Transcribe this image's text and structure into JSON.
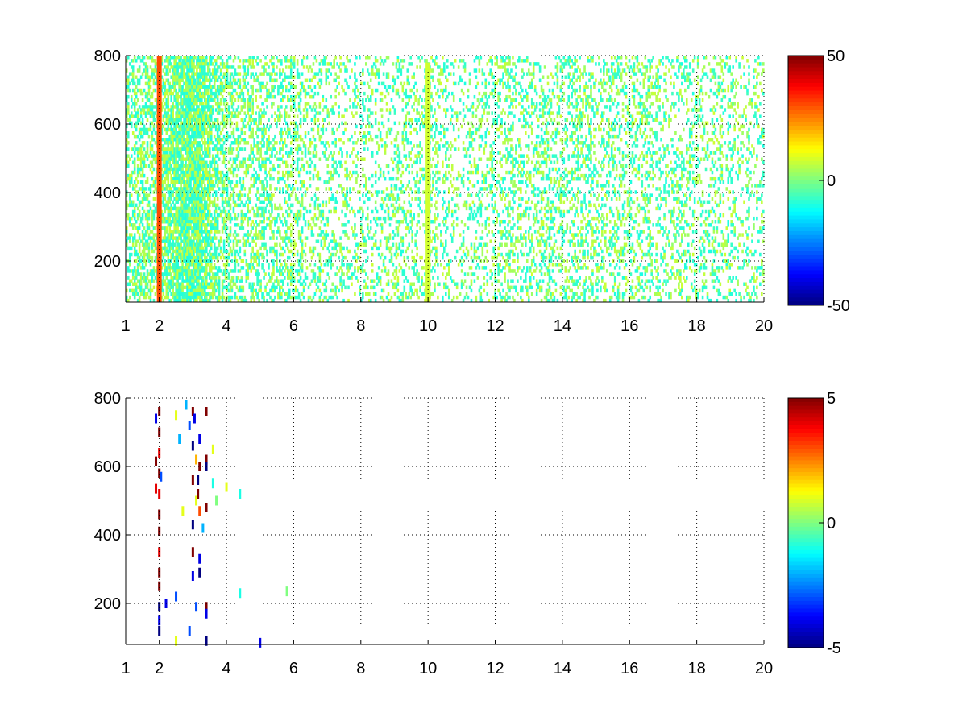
{
  "chart_data": [
    {
      "type": "heatmap",
      "title": "",
      "xlabel": "",
      "ylabel": "",
      "xlim": [
        1,
        20
      ],
      "ylim": [
        80,
        800
      ],
      "x_ticks": [
        1,
        2,
        4,
        6,
        8,
        10,
        12,
        14,
        16,
        18,
        20
      ],
      "x_tick_labels": [
        "1",
        "2",
        "4",
        "6",
        "8",
        "10",
        "12",
        "14",
        "16",
        "18",
        "20"
      ],
      "y_ticks": [
        200,
        400,
        600,
        800
      ],
      "y_tick_labels": [
        "200",
        "400",
        "600",
        "800"
      ],
      "grid": true,
      "colormap": "jet",
      "colorbar": {
        "min": -50,
        "max": 50,
        "ticks": [
          -50,
          0,
          50
        ],
        "tick_labels": [
          "-50",
          "0",
          "50"
        ]
      },
      "density_profile": [
        {
          "x": 1.0,
          "density": 0.45
        },
        {
          "x": 2.0,
          "density": 0.55
        },
        {
          "x": 2.6,
          "density": 0.9
        },
        {
          "x": 3.2,
          "density": 0.95
        },
        {
          "x": 3.6,
          "density": 0.6
        },
        {
          "x": 4.0,
          "density": 0.45
        },
        {
          "x": 5.0,
          "density": 0.38
        },
        {
          "x": 6.0,
          "density": 0.32
        },
        {
          "x": 7.0,
          "density": 0.26
        },
        {
          "x": 8.0,
          "density": 0.2
        },
        {
          "x": 9.0,
          "density": 0.28
        },
        {
          "x": 10.0,
          "density": 0.25
        },
        {
          "x": 11.0,
          "density": 0.2
        },
        {
          "x": 12.0,
          "density": 0.3
        },
        {
          "x": 14.0,
          "density": 0.3
        },
        {
          "x": 16.0,
          "density": 0.3
        },
        {
          "x": 18.0,
          "density": 0.24
        },
        {
          "x": 20.0,
          "density": 0.2
        }
      ],
      "value_range_typical": [
        -10,
        8
      ],
      "emphasized_columns": [
        {
          "x": 10.0,
          "value": 8,
          "ymin": 80,
          "ymax": 780
        },
        {
          "x": 2.0,
          "value": 30,
          "ymin": 80,
          "ymax": 800
        }
      ],
      "series": []
    },
    {
      "type": "heatmap",
      "title": "",
      "xlabel": "",
      "ylabel": "",
      "xlim": [
        1,
        20
      ],
      "ylim": [
        80,
        800
      ],
      "x_ticks": [
        1,
        2,
        4,
        6,
        8,
        10,
        12,
        14,
        16,
        18,
        20
      ],
      "x_tick_labels": [
        "1",
        "2",
        "4",
        "6",
        "8",
        "10",
        "12",
        "14",
        "16",
        "18",
        "20"
      ],
      "y_ticks": [
        200,
        400,
        600,
        800
      ],
      "y_tick_labels": [
        "200",
        "400",
        "600",
        "800"
      ],
      "grid": true,
      "colormap": "jet",
      "colorbar": {
        "min": -5,
        "max": 5,
        "ticks": [
          -5,
          0,
          5
        ],
        "tick_labels": [
          "-5",
          "0",
          "5"
        ]
      },
      "sparse_points": [
        {
          "x": 2.0,
          "y": 760,
          "v": 5
        },
        {
          "x": 2.0,
          "y": 700,
          "v": 5
        },
        {
          "x": 2.0,
          "y": 640,
          "v": 4
        },
        {
          "x": 2.0,
          "y": 580,
          "v": 5
        },
        {
          "x": 2.0,
          "y": 520,
          "v": 4
        },
        {
          "x": 2.0,
          "y": 460,
          "v": 5
        },
        {
          "x": 2.0,
          "y": 410,
          "v": 5
        },
        {
          "x": 2.0,
          "y": 350,
          "v": 4
        },
        {
          "x": 2.0,
          "y": 290,
          "v": 5
        },
        {
          "x": 2.0,
          "y": 250,
          "v": 5
        },
        {
          "x": 2.0,
          "y": 190,
          "v": -5
        },
        {
          "x": 2.0,
          "y": 150,
          "v": -4
        },
        {
          "x": 2.0,
          "y": 120,
          "v": -5
        },
        {
          "x": 1.9,
          "y": 740,
          "v": -4
        },
        {
          "x": 1.9,
          "y": 615,
          "v": 5
        },
        {
          "x": 1.9,
          "y": 535,
          "v": 4
        },
        {
          "x": 2.05,
          "y": 570,
          "v": -3
        },
        {
          "x": 2.5,
          "y": 750,
          "v": 1
        },
        {
          "x": 2.5,
          "y": 220,
          "v": -3
        },
        {
          "x": 2.5,
          "y": 90,
          "v": 1
        },
        {
          "x": 2.2,
          "y": 200,
          "v": -4
        },
        {
          "x": 2.9,
          "y": 720,
          "v": -3
        },
        {
          "x": 3.0,
          "y": 760,
          "v": 5
        },
        {
          "x": 3.0,
          "y": 660,
          "v": -5
        },
        {
          "x": 3.0,
          "y": 560,
          "v": 5
        },
        {
          "x": 3.0,
          "y": 430,
          "v": -5
        },
        {
          "x": 3.0,
          "y": 350,
          "v": 5
        },
        {
          "x": 3.0,
          "y": 280,
          "v": -4
        },
        {
          "x": 3.05,
          "y": 740,
          "v": -4
        },
        {
          "x": 3.1,
          "y": 620,
          "v": 2
        },
        {
          "x": 3.1,
          "y": 500,
          "v": 1
        },
        {
          "x": 3.15,
          "y": 520,
          "v": 5
        },
        {
          "x": 3.15,
          "y": 560,
          "v": -5
        },
        {
          "x": 3.2,
          "y": 680,
          "v": -4
        },
        {
          "x": 3.2,
          "y": 600,
          "v": 5
        },
        {
          "x": 3.2,
          "y": 470,
          "v": 3
        },
        {
          "x": 3.2,
          "y": 330,
          "v": -4
        },
        {
          "x": 3.2,
          "y": 290,
          "v": -5
        },
        {
          "x": 3.1,
          "y": 190,
          "v": -3
        },
        {
          "x": 3.4,
          "y": 760,
          "v": 5
        },
        {
          "x": 3.4,
          "y": 620,
          "v": 5
        },
        {
          "x": 3.4,
          "y": 600,
          "v": -5
        },
        {
          "x": 3.4,
          "y": 480,
          "v": 5
        },
        {
          "x": 3.4,
          "y": 190,
          "v": 5
        },
        {
          "x": 3.4,
          "y": 170,
          "v": -4
        },
        {
          "x": 3.4,
          "y": 90,
          "v": -5
        },
        {
          "x": 3.6,
          "y": 650,
          "v": 1
        },
        {
          "x": 3.6,
          "y": 550,
          "v": -1
        },
        {
          "x": 3.7,
          "y": 500,
          "v": 0
        },
        {
          "x": 4.4,
          "y": 520,
          "v": -1
        },
        {
          "x": 4.4,
          "y": 230,
          "v": -1
        },
        {
          "x": 4.0,
          "y": 540,
          "v": 1
        },
        {
          "x": 5.0,
          "y": 85,
          "v": -4
        },
        {
          "x": 5.8,
          "y": 235,
          "v": 0
        },
        {
          "x": 2.8,
          "y": 780,
          "v": -2
        },
        {
          "x": 2.6,
          "y": 680,
          "v": -2
        },
        {
          "x": 2.7,
          "y": 470,
          "v": 1
        },
        {
          "x": 3.3,
          "y": 420,
          "v": -2
        },
        {
          "x": 2.9,
          "y": 120,
          "v": -3
        }
      ],
      "series": []
    }
  ]
}
